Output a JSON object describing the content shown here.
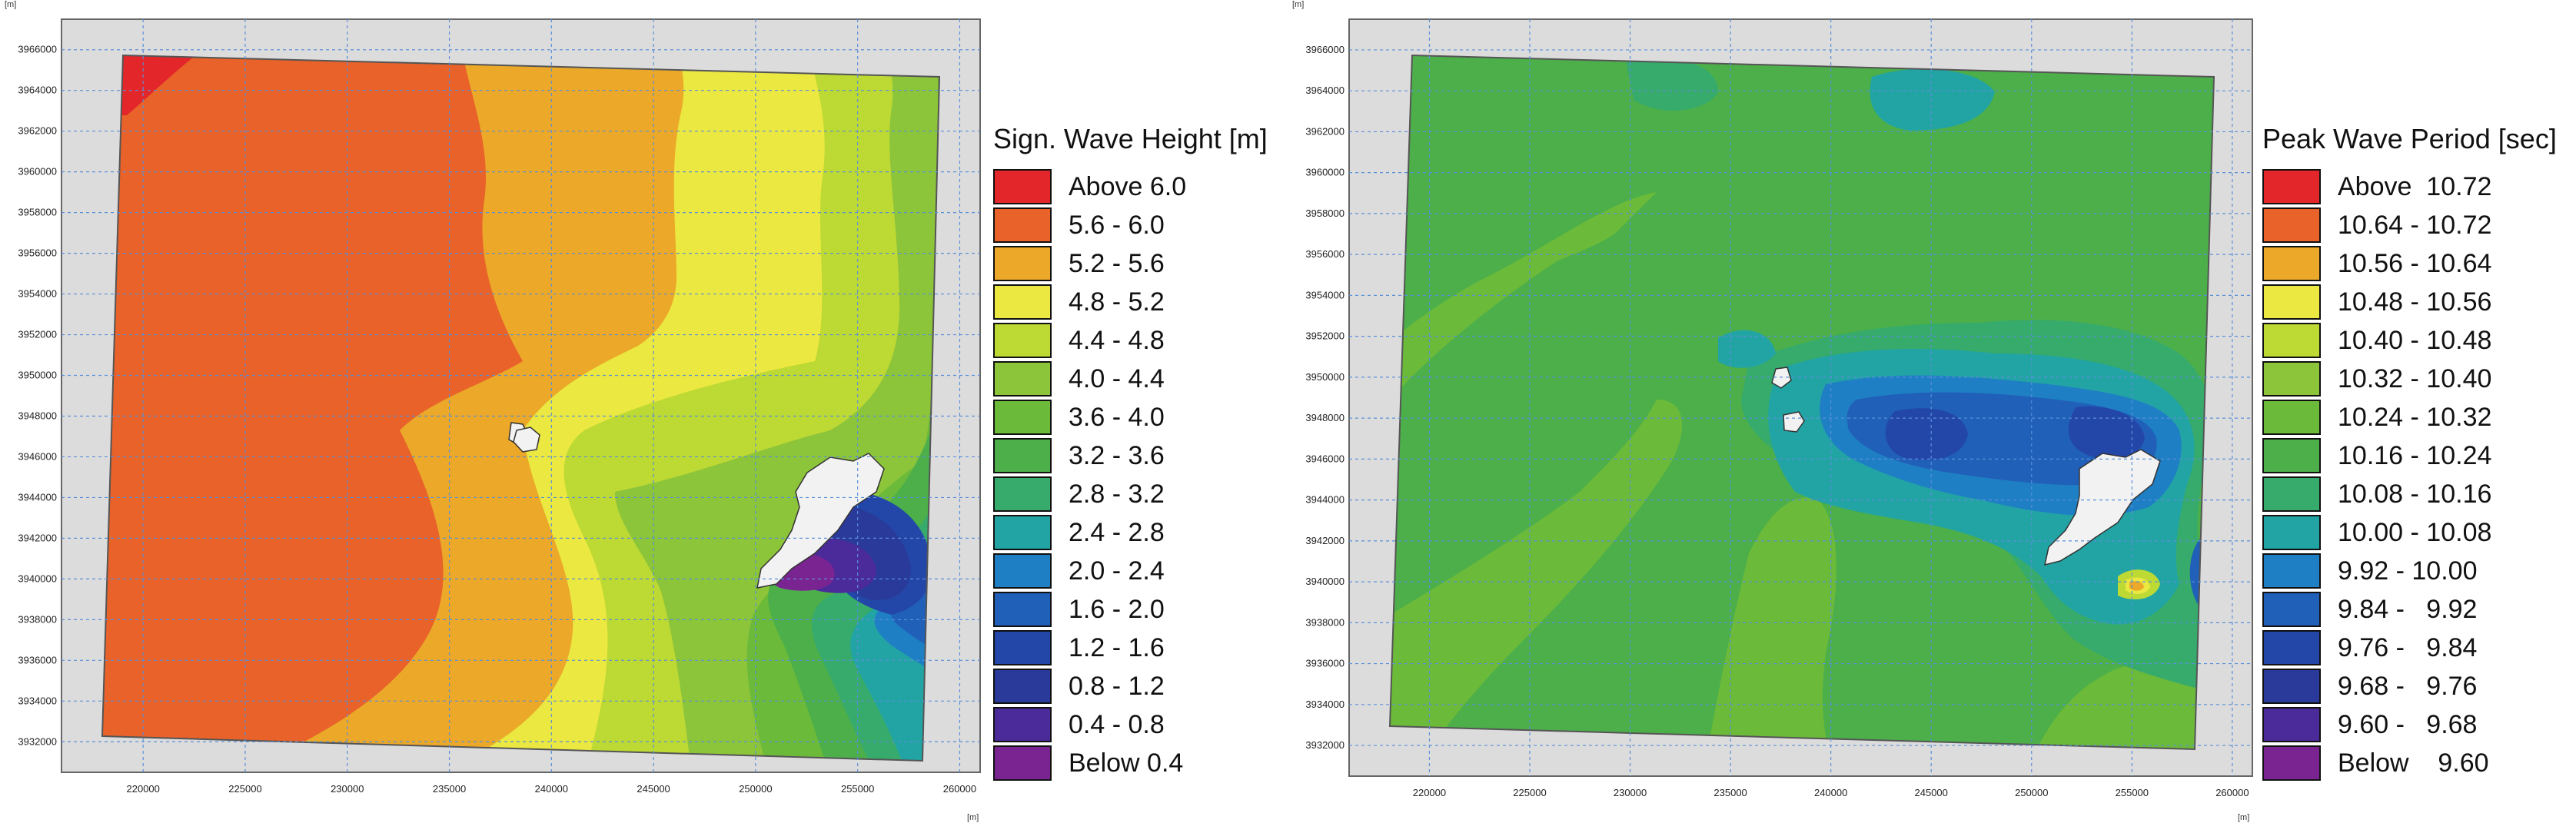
{
  "chart_data": [
    {
      "type": "heatmap",
      "title": "",
      "legend_title": "Sign. Wave Height [m]",
      "x_unit": "[m]",
      "y_unit": "[m]",
      "x_ticks": [
        "220000",
        "225000",
        "230000",
        "235000",
        "240000",
        "245000",
        "250000",
        "255000",
        "260000"
      ],
      "y_ticks": [
        "3966000",
        "3964000",
        "3962000",
        "3960000",
        "3958000",
        "3956000",
        "3954000",
        "3952000",
        "3950000",
        "3948000",
        "3946000",
        "3944000",
        "3942000",
        "3940000",
        "3938000",
        "3936000",
        "3934000",
        "3932000"
      ],
      "xlim": [
        216000,
        261000
      ],
      "ylim": [
        3930500,
        3967500
      ],
      "legend_position": "right",
      "grid": true,
      "classes": [
        {
          "label": "Above 6.0",
          "color": "#e3262a"
        },
        {
          "label": "5.6 - 6.0",
          "color": "#e8622a"
        },
        {
          "label": "5.2 - 5.6",
          "color": "#eba829"
        },
        {
          "label": "4.8 - 5.2",
          "color": "#ebe841"
        },
        {
          "label": "4.4 - 4.8",
          "color": "#bdd933"
        },
        {
          "label": "4.0 - 4.4",
          "color": "#8cc43a"
        },
        {
          "label": "3.6 - 4.0",
          "color": "#6bba3a"
        },
        {
          "label": "3.2 - 3.6",
          "color": "#4caf4a"
        },
        {
          "label": "2.8 - 3.2",
          "color": "#36ab6c"
        },
        {
          "label": "2.4 - 2.8",
          "color": "#22a4a4"
        },
        {
          "label": "2.0 - 2.4",
          "color": "#1f7fc4"
        },
        {
          "label": "1.6 - 2.0",
          "color": "#2060b8"
        },
        {
          "label": "1.2 - 1.6",
          "color": "#2347a8"
        },
        {
          "label": "0.8 - 1.2",
          "color": "#2a3a9a"
        },
        {
          "label": "0.4 - 0.8",
          "color": "#4b2b9a"
        },
        {
          "label": "Below 0.4",
          "color": "#7a2492"
        }
      ]
    },
    {
      "type": "heatmap",
      "title": "",
      "legend_title": "Peak Wave Period [sec]",
      "x_unit": "[m]",
      "y_unit": "[m]",
      "x_ticks": [
        "220000",
        "225000",
        "230000",
        "235000",
        "240000",
        "245000",
        "250000",
        "255000",
        "260000"
      ],
      "y_ticks": [
        "3966000",
        "3964000",
        "3962000",
        "3960000",
        "3958000",
        "3956000",
        "3954000",
        "3952000",
        "3950000",
        "3948000",
        "3946000",
        "3944000",
        "3942000",
        "3940000",
        "3938000",
        "3936000",
        "3934000",
        "3932000"
      ],
      "xlim": [
        216000,
        261000
      ],
      "ylim": [
        3930500,
        3967500
      ],
      "legend_position": "right",
      "grid": true,
      "classes": [
        {
          "label": "Above  10.72",
          "color": "#e3262a"
        },
        {
          "label": "10.64 - 10.72",
          "color": "#e8622a"
        },
        {
          "label": "10.56 - 10.64",
          "color": "#eba829"
        },
        {
          "label": "10.48 - 10.56",
          "color": "#ebe841"
        },
        {
          "label": "10.40 - 10.48",
          "color": "#bdd933"
        },
        {
          "label": "10.32 - 10.40",
          "color": "#8cc43a"
        },
        {
          "label": "10.24 - 10.32",
          "color": "#6bba3a"
        },
        {
          "label": "10.16 - 10.24",
          "color": "#4caf4a"
        },
        {
          "label": "10.08 - 10.16",
          "color": "#36ab6c"
        },
        {
          "label": "10.00 - 10.08",
          "color": "#22a4a4"
        },
        {
          "label": "9.92 - 10.00",
          "color": "#1f7fc4"
        },
        {
          "label": "9.84 -   9.92",
          "color": "#2060b8"
        },
        {
          "label": "9.76 -   9.84",
          "color": "#2347a8"
        },
        {
          "label": "9.68 -   9.76",
          "color": "#2a3a9a"
        },
        {
          "label": "9.60 -   9.68",
          "color": "#4b2b9a"
        },
        {
          "label": "Below    9.60",
          "color": "#7a2492"
        }
      ]
    }
  ]
}
